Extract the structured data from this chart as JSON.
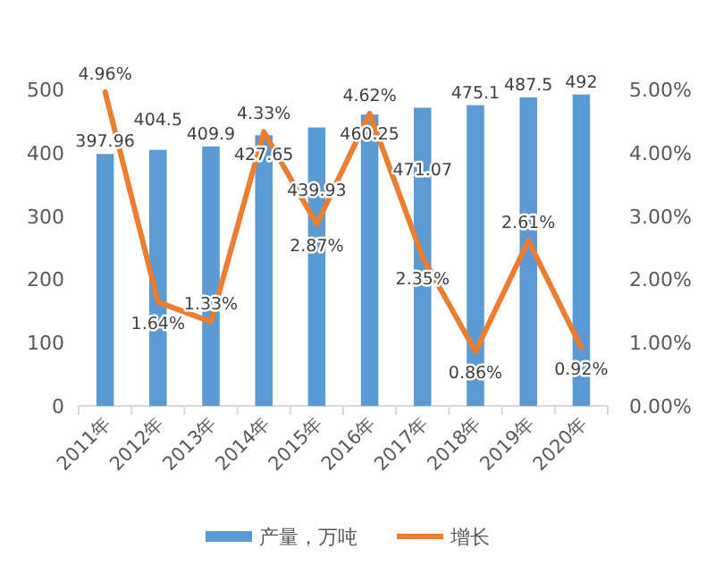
{
  "chart_data": {
    "type": "bar",
    "categories": [
      "2011年",
      "2012年",
      "2013年",
      "2014年",
      "2015年",
      "2016年",
      "2017年",
      "2018年",
      "2019年",
      "2020年"
    ],
    "series": [
      {
        "name": "产量，万吨",
        "color": "#5b9bd5",
        "values": [
          397.96,
          404.5,
          409.9,
          427.65,
          439.93,
          460.25,
          471.07,
          475.1,
          487.5,
          492
        ],
        "value_labels": [
          "397.96",
          "404.5",
          "409.9",
          "427.65",
          "439.93",
          "460.25",
          "471.07",
          "475.1",
          "487.5",
          "492"
        ]
      },
      {
        "name": "增长",
        "type": "line",
        "axis": "y2",
        "color": "#ed7d31",
        "values": [
          4.96,
          1.64,
          1.33,
          4.33,
          2.87,
          4.62,
          2.35,
          0.86,
          2.61,
          0.92
        ],
        "value_labels": [
          "4.96%",
          "1.64%",
          "1.33%",
          "4.33%",
          "2.87%",
          "4.62%",
          "2.35%",
          "0.86%",
          "2.61%",
          "0.92%"
        ]
      }
    ],
    "ylim": [
      0,
      500
    ],
    "yticks": [
      0,
      100,
      200,
      300,
      400,
      500
    ],
    "y2lim": [
      0,
      5
    ],
    "y2ticks": [
      {
        "value": 0,
        "label": "0.00%"
      },
      {
        "value": 1,
        "label": "1.00%"
      },
      {
        "value": 2,
        "label": "2.00%"
      },
      {
        "value": 3,
        "label": "3.00%"
      },
      {
        "value": 4,
        "label": "4.00%"
      },
      {
        "value": 5,
        "label": "5.00%"
      }
    ],
    "legend": "bottom",
    "marker": "none"
  }
}
